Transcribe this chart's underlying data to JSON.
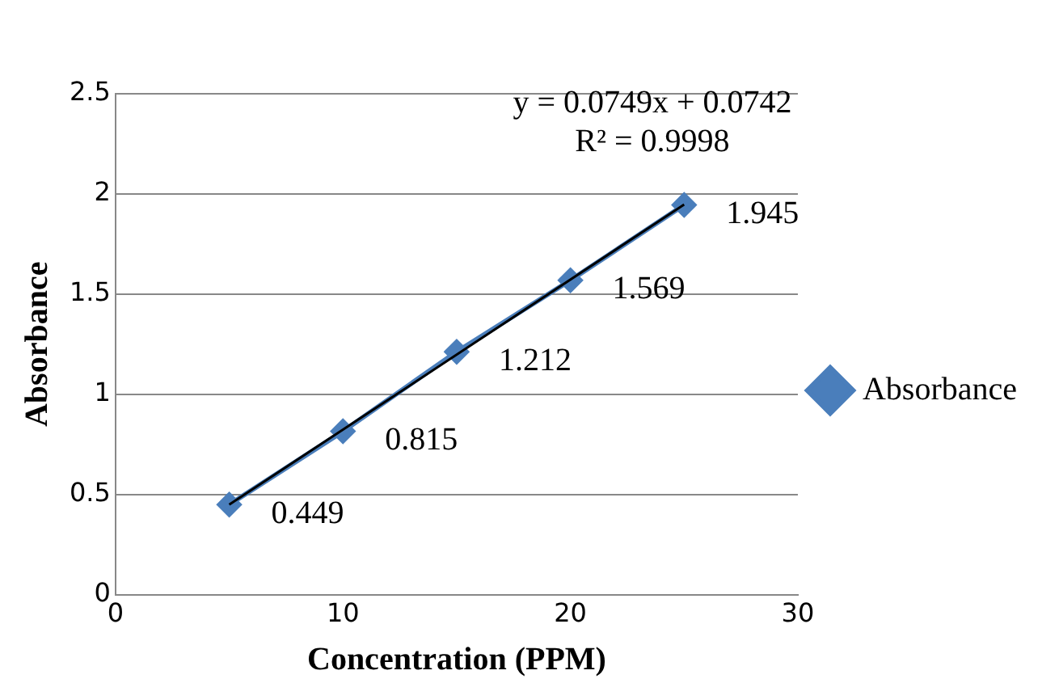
{
  "chart_data": {
    "type": "line",
    "xlabel": "Concentration (PPM)",
    "ylabel": "Absorbance",
    "x": [
      5,
      10,
      15,
      20,
      25
    ],
    "series": [
      {
        "name": "Absorbance",
        "color": "#4a7ebb",
        "values": [
          0.449,
          0.815,
          1.212,
          1.569,
          1.945
        ],
        "value_labels": [
          "0.449",
          "0.815",
          "1.212",
          "1.569",
          "1.945"
        ],
        "marker": "diamond"
      },
      {
        "type": "line",
        "color": "#000000",
        "x": [
          5,
          25
        ],
        "values": [
          0.449,
          1.947
        ],
        "marker": "none"
      }
    ],
    "xlim": [
      0,
      30
    ],
    "xticks": [
      0,
      10,
      20,
      30
    ],
    "ylim": [
      0,
      2.5
    ],
    "yticks": [
      0,
      0.5,
      1,
      1.5,
      2,
      2.5
    ],
    "grid": "y",
    "legend": "right",
    "annotations": [
      "y = 0.0749x + 0.0742",
      "R² = 0.9998"
    ]
  }
}
